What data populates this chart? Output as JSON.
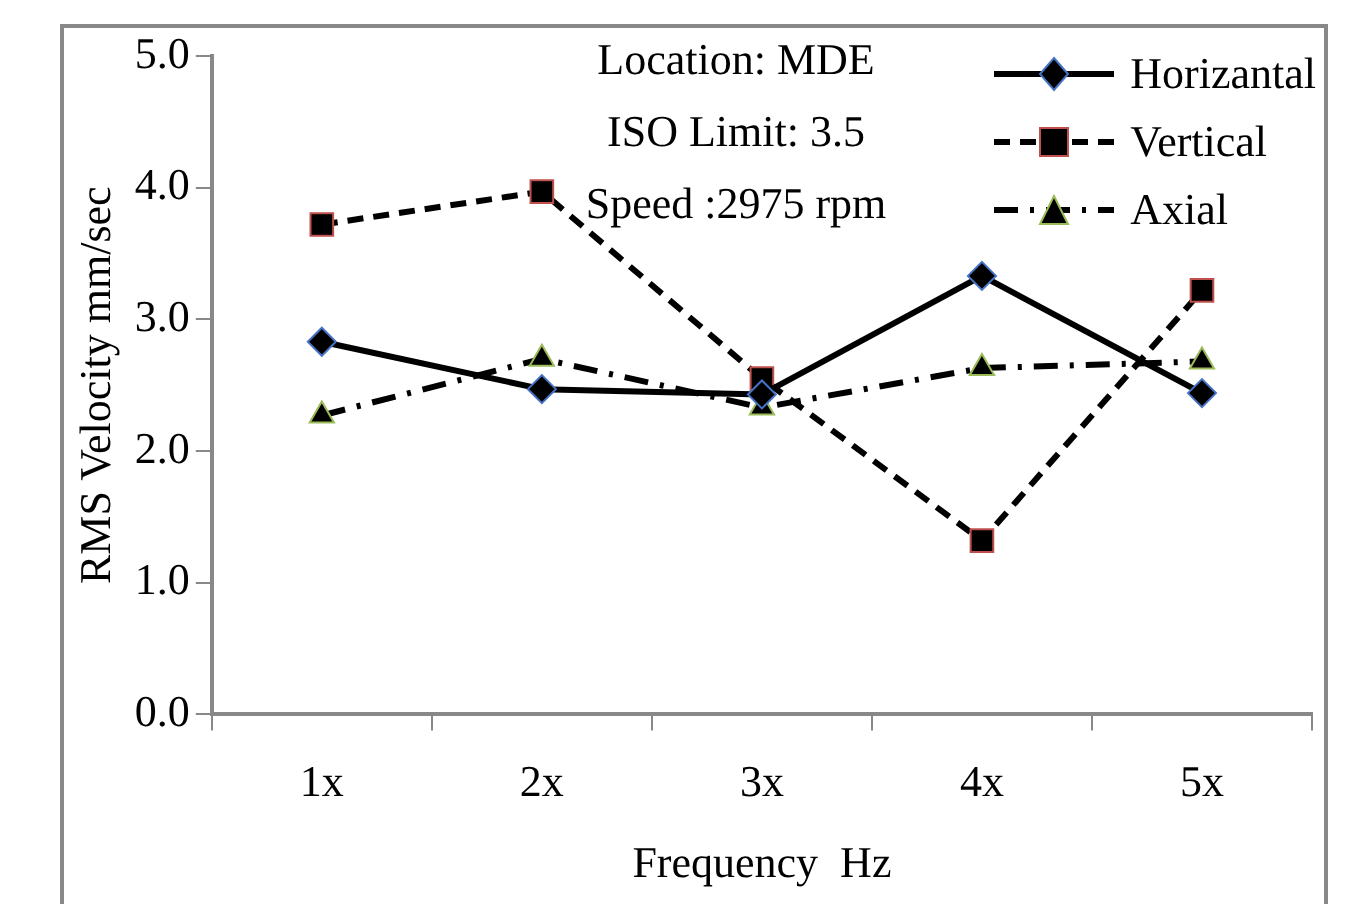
{
  "chart_data": {
    "type": "line",
    "xlabel": "Frequency  Hz",
    "ylabel": "RMS Velocity mm/sec",
    "categories": [
      "1x",
      "2x",
      "3x",
      "4x",
      "5x"
    ],
    "series": [
      {
        "name": "Horizantal",
        "color": "#000000",
        "marker": "diamond",
        "line_style": "solid",
        "values": [
          2.83,
          2.47,
          2.43,
          3.33,
          2.44
        ]
      },
      {
        "name": "Vertical",
        "color": "#000000",
        "marker": "square",
        "line_style": "dashed",
        "values": [
          3.72,
          3.97,
          2.55,
          1.32,
          3.22
        ]
      },
      {
        "name": "Axial",
        "color": "#000000",
        "marker": "triangle",
        "line_style": "dashdot",
        "values": [
          2.27,
          2.7,
          2.33,
          2.63,
          2.68
        ]
      }
    ],
    "ylim": [
      0,
      5
    ],
    "yticks": [
      {
        "value": 0,
        "label": "0.0"
      },
      {
        "value": 1,
        "label": "1.0"
      },
      {
        "value": 2,
        "label": "2.0"
      },
      {
        "value": 3,
        "label": "3.0"
      },
      {
        "value": 4,
        "label": "4.0"
      },
      {
        "value": 5,
        "label": "5.0"
      }
    ],
    "annotations": [
      "Location: MDE",
      "ISO Limit: 3.5",
      "Speed :2975 rpm"
    ],
    "grid": false,
    "legend": "top right"
  }
}
